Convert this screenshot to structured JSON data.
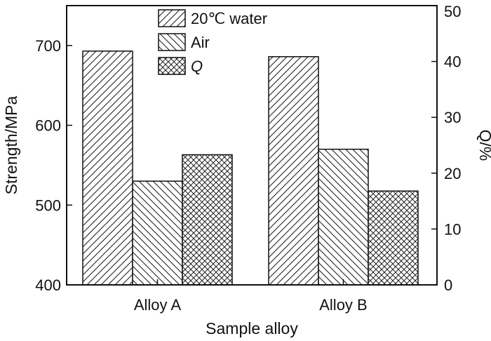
{
  "chart_data": {
    "type": "bar",
    "title": "",
    "xlabel": "Sample alloy",
    "ylabel": "Strength/MPa",
    "y2label": "Q/%",
    "categories": [
      "Alloy A",
      "Alloy B"
    ],
    "ylim": [
      400,
      750
    ],
    "y2lim": [
      0,
      50
    ],
    "yticks": [
      "400",
      "500",
      "600",
      "700"
    ],
    "y2ticks": [
      "0",
      "10",
      "20",
      "30",
      "40",
      "50"
    ],
    "grid": false,
    "legend_position": "top-center",
    "series": [
      {
        "name": "20℃ water",
        "axis": "left",
        "values": [
          693,
          686
        ],
        "pattern": "forward-diagonal"
      },
      {
        "name": "Air",
        "axis": "left",
        "values": [
          530,
          570
        ],
        "pattern": "back-diagonal"
      },
      {
        "name": "Q",
        "axis": "right",
        "values": [
          23.3,
          16.8
        ],
        "pattern": "crosshatch"
      }
    ]
  }
}
